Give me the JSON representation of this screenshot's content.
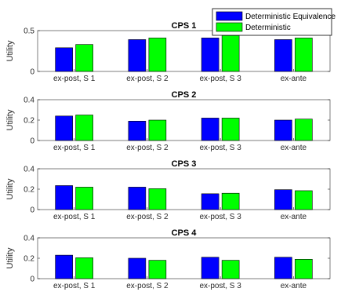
{
  "chart_data": [
    {
      "type": "bar",
      "title": "CPS 1",
      "ylabel": "Utility",
      "ylim": [
        0,
        0.5
      ],
      "yticks": [
        "0",
        "0.5"
      ],
      "categories": [
        "ex-post, S 1",
        "ex-post, S 2",
        "ex-post, S 3",
        "ex-ante"
      ],
      "series": [
        {
          "name": "Deterministic Equivalence",
          "values": [
            0.29,
            0.39,
            0.41,
            0.39
          ]
        },
        {
          "name": "Deterministic",
          "values": [
            0.33,
            0.41,
            0.44,
            0.41
          ]
        }
      ]
    },
    {
      "type": "bar",
      "title": "CPS 2",
      "ylabel": "Utility",
      "ylim": [
        0,
        0.4
      ],
      "yticks": [
        "0",
        "0.2",
        "0.4"
      ],
      "categories": [
        "ex-post, S 1",
        "ex-post, S 2",
        "ex-post, S 3",
        "ex-ante"
      ],
      "series": [
        {
          "name": "Deterministic Equivalence",
          "values": [
            0.24,
            0.19,
            0.22,
            0.2
          ]
        },
        {
          "name": "Deterministic",
          "values": [
            0.25,
            0.2,
            0.22,
            0.21
          ]
        }
      ]
    },
    {
      "type": "bar",
      "title": "CPS 3",
      "ylabel": "Utility",
      "ylim": [
        0,
        0.4
      ],
      "yticks": [
        "0",
        "0.2",
        "0.4"
      ],
      "categories": [
        "ex-post, S 1",
        "ex-post, S 2",
        "ex-post, S 3",
        "ex-ante"
      ],
      "series": [
        {
          "name": "Deterministic Equivalence",
          "values": [
            0.235,
            0.22,
            0.155,
            0.195
          ]
        },
        {
          "name": "Deterministic",
          "values": [
            0.22,
            0.205,
            0.16,
            0.185
          ]
        }
      ]
    },
    {
      "type": "bar",
      "title": "CPS 4",
      "ylabel": "Utility",
      "ylim": [
        0,
        0.4
      ],
      "yticks": [
        "0",
        "0.2",
        "0.4"
      ],
      "categories": [
        "ex-post, S 1",
        "ex-post, S 2",
        "ex-post, S 3",
        "ex-ante"
      ],
      "series": [
        {
          "name": "Deterministic Equivalence",
          "values": [
            0.23,
            0.2,
            0.21,
            0.21
          ]
        },
        {
          "name": "Deterministic",
          "values": [
            0.205,
            0.18,
            0.18,
            0.19
          ]
        }
      ]
    }
  ],
  "legend": {
    "position": "top-right",
    "items": [
      {
        "label": "Deterministic Equivalence",
        "color": "#0000ff"
      },
      {
        "label": "Deterministic",
        "color": "#00ff00"
      }
    ]
  },
  "colors": {
    "series_1": "#0000ff",
    "series_2": "#00ff00"
  }
}
